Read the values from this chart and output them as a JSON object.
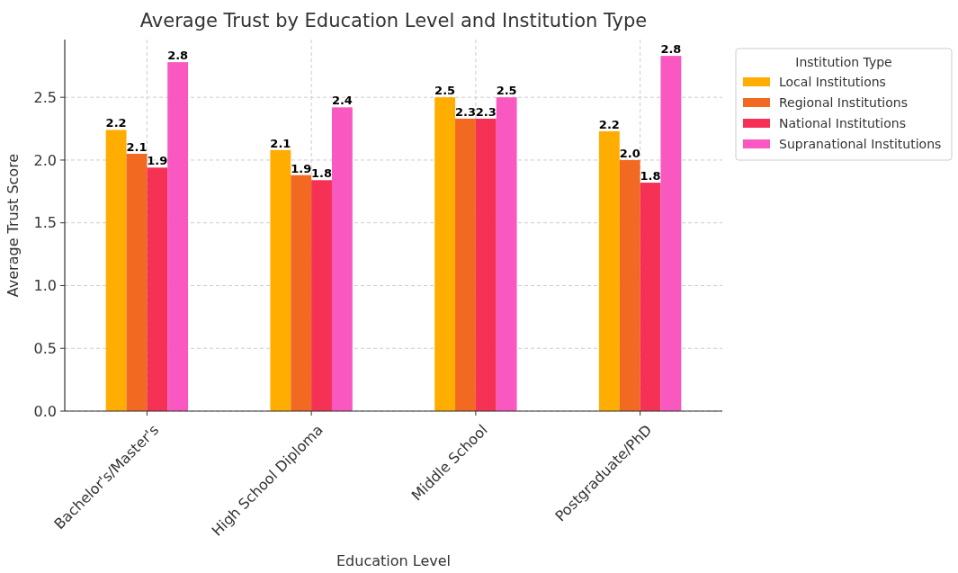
{
  "chart_data": {
    "type": "bar",
    "title": "Average Trust by Education Level and Institution Type",
    "xlabel": "Education Level",
    "ylabel": "Average Trust Score",
    "legend_title": "Institution Type",
    "categories": [
      "Bachelor's/Master's",
      "High School Diploma",
      "Middle School",
      "Postgraduate/PhD"
    ],
    "series": [
      {
        "name": "Local Institutions",
        "color": "#ffad00",
        "values": [
          2.24,
          2.08,
          2.5,
          2.23
        ],
        "value_labels": [
          "2.2",
          "2.1",
          "2.5",
          "2.2"
        ]
      },
      {
        "name": "Regional Institutions",
        "color": "#f26922",
        "values": [
          2.05,
          1.88,
          2.33,
          2.0
        ],
        "value_labels": [
          "2.1",
          "1.9",
          "2.3",
          "2.0"
        ]
      },
      {
        "name": "National Institutions",
        "color": "#f53255",
        "values": [
          1.94,
          1.84,
          2.33,
          1.82
        ],
        "value_labels": [
          "1.9",
          "1.8",
          "2.3",
          "1.8"
        ]
      },
      {
        "name": "Supranational Institutions",
        "color": "#f858c0",
        "values": [
          2.78,
          2.42,
          2.5,
          2.83
        ],
        "value_labels": [
          "2.8",
          "2.4",
          "2.5",
          "2.8"
        ]
      }
    ],
    "ylim": [
      0,
      2.96
    ],
    "yticks": [
      {
        "value": 0,
        "label": "0.0"
      },
      {
        "value": 0.5,
        "label": "0.5"
      },
      {
        "value": 1,
        "label": "1.0"
      },
      {
        "value": 1.5,
        "label": "1.5"
      },
      {
        "value": 2,
        "label": "2.0"
      },
      {
        "value": 2.5,
        "label": "2.5"
      }
    ],
    "grid": true,
    "legend": "right"
  }
}
